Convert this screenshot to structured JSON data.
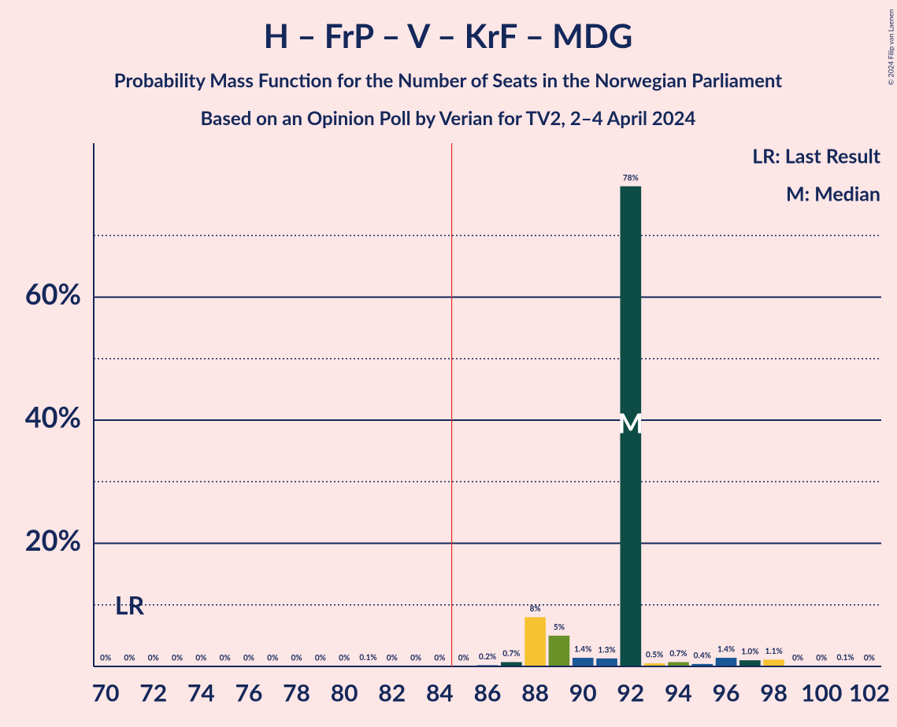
{
  "chart_data": {
    "type": "bar",
    "title": "H – FrP – V – KrF – MDG",
    "subtitle": "Probability Mass Function for the Number of Seats in the Norwegian Parliament",
    "subtitle2": "Based on an Opinion Poll by Verian for TV2, 2–4 April 2024",
    "copyright": "© 2024 Filip van Laenen",
    "x": [
      70,
      71,
      72,
      73,
      74,
      75,
      76,
      77,
      78,
      79,
      80,
      81,
      82,
      83,
      84,
      85,
      86,
      87,
      88,
      89,
      90,
      91,
      92,
      93,
      94,
      95,
      96,
      97,
      98,
      99,
      100,
      101,
      102
    ],
    "values": [
      0,
      0,
      0,
      0,
      0,
      0,
      0,
      0,
      0,
      0,
      0,
      0.1,
      0,
      0,
      0,
      0,
      0.2,
      0.7,
      8,
      5,
      1.4,
      1.3,
      78,
      0.5,
      0.7,
      0.4,
      1.4,
      1.0,
      1.1,
      0,
      0,
      0.1,
      0
    ],
    "value_labels": [
      "0%",
      "0%",
      "0%",
      "0%",
      "0%",
      "0%",
      "0%",
      "0%",
      "0%",
      "0%",
      "0%",
      "0.1%",
      "0%",
      "0%",
      "0%",
      "0%",
      "0.2%",
      "0.7%",
      "8%",
      "5%",
      "1.4%",
      "1.3%",
      "78%",
      "0.5%",
      "0.7%",
      "0.4%",
      "1.4%",
      "1.0%",
      "1.1%",
      "0%",
      "0%",
      "0.1%",
      "0%"
    ],
    "colors": [
      "#0e4d45",
      "#f5c332",
      "#6a9128",
      "#1a5896",
      "#1a5896"
    ],
    "xlim": [
      69.5,
      102.5
    ],
    "xticks": [
      70,
      72,
      74,
      76,
      78,
      80,
      82,
      84,
      86,
      88,
      90,
      92,
      94,
      96,
      98,
      100,
      102
    ],
    "ylim": [
      0,
      85
    ],
    "yticks": [
      {
        "value": 20,
        "label": "20%"
      },
      {
        "value": 40,
        "label": "40%"
      },
      {
        "value": 60,
        "label": "60%"
      }
    ],
    "minor_grid": [
      10,
      30,
      50,
      70
    ],
    "threshold": 84.5,
    "last_result": 71,
    "last_result_label": "LR",
    "median": 92,
    "median_label": "M",
    "legend": [
      "LR: Last Result",
      "M: Median"
    ]
  }
}
